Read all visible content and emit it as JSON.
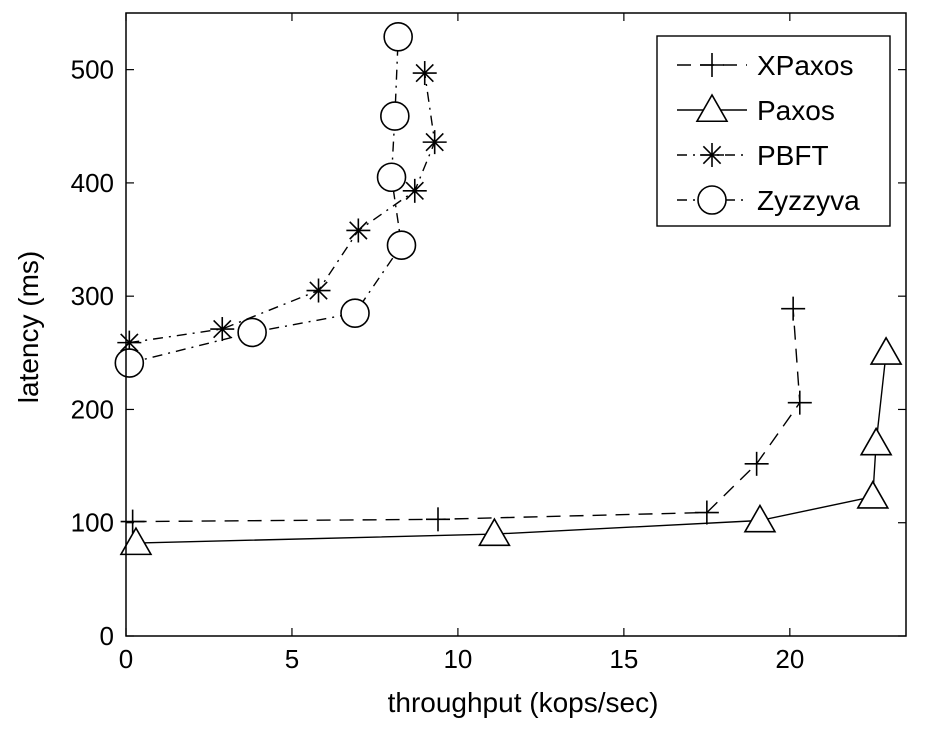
{
  "chart_data": {
    "type": "line",
    "title": "",
    "xlabel": "throughput (kops/sec)",
    "ylabel": "latency (ms)",
    "xlim": [
      0,
      23.5
    ],
    "ylim": [
      0,
      550
    ],
    "xticks": [
      0,
      5,
      10,
      15,
      20
    ],
    "yticks": [
      0,
      100,
      200,
      300,
      400,
      500
    ],
    "grid": false,
    "legend_position": "top-right",
    "series": [
      {
        "name": "XPaxos",
        "line_style": "dashed",
        "marker": "plus",
        "points": [
          [
            0.2,
            101
          ],
          [
            9.4,
            103
          ],
          [
            17.5,
            109
          ],
          [
            19.0,
            152
          ],
          [
            20.3,
            206
          ],
          [
            20.1,
            289
          ]
        ]
      },
      {
        "name": "Paxos",
        "line_style": "solid",
        "marker": "triangle",
        "points": [
          [
            0.3,
            82
          ],
          [
            11.1,
            90
          ],
          [
            19.1,
            102
          ],
          [
            22.5,
            123
          ],
          [
            22.6,
            170
          ],
          [
            22.9,
            250
          ]
        ]
      },
      {
        "name": "PBFT",
        "line_style": "dashdot",
        "marker": "asterisk",
        "points": [
          [
            0.1,
            259
          ],
          [
            2.9,
            271
          ],
          [
            5.8,
            305
          ],
          [
            7.0,
            358
          ],
          [
            8.7,
            393
          ],
          [
            9.3,
            436
          ],
          [
            9.0,
            497
          ]
        ]
      },
      {
        "name": "Zyzzyva",
        "line_style": "dashdot",
        "marker": "circle",
        "points": [
          [
            0.1,
            241
          ],
          [
            3.8,
            268
          ],
          [
            6.9,
            285
          ],
          [
            8.3,
            345
          ],
          [
            8.0,
            405
          ],
          [
            8.1,
            459
          ],
          [
            8.2,
            529
          ]
        ]
      }
    ]
  }
}
